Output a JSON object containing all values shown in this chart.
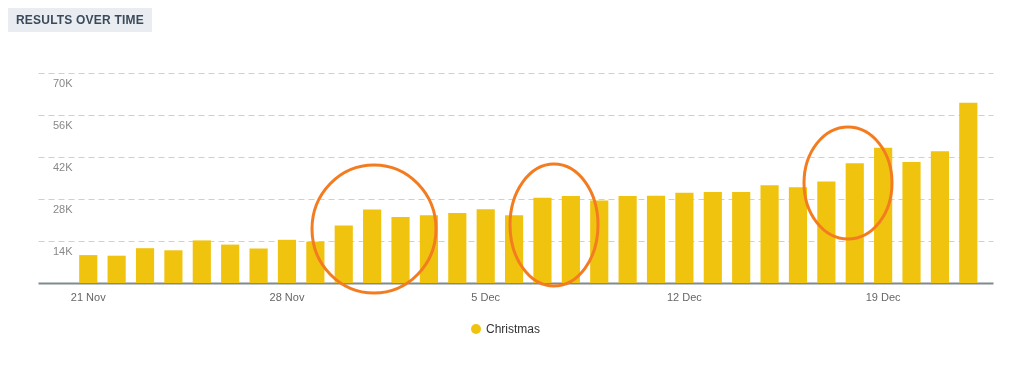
{
  "chart_data": {
    "type": "bar",
    "title": "RESULTS OVER TIME",
    "categories": [
      "21 Nov",
      null,
      null,
      null,
      null,
      null,
      null,
      "28 Nov",
      null,
      null,
      null,
      null,
      null,
      null,
      "5 Dec",
      null,
      null,
      null,
      null,
      null,
      null,
      "12 Dec",
      null,
      null,
      null,
      null,
      null,
      null,
      "19 Dec",
      null,
      null,
      null
    ],
    "series": [
      {
        "name": "Christmas",
        "color": "#f0c30f",
        "values": [
          9300,
          9100,
          11600,
          10900,
          14200,
          12800,
          11500,
          14400,
          13800,
          19200,
          24500,
          22000,
          22600,
          23300,
          24600,
          22600,
          28400,
          29000,
          27500,
          29000,
          29100,
          30100,
          30300,
          30300,
          32600,
          31900,
          33800,
          39900,
          45100,
          40300,
          43900,
          60100
        ]
      }
    ],
    "ylim": [
      0,
      70000
    ],
    "yticks": [
      {
        "value": 14000,
        "label": "14K"
      },
      {
        "value": 28000,
        "label": "28K"
      },
      {
        "value": 42000,
        "label": "42K"
      },
      {
        "value": 56000,
        "label": "56K"
      },
      {
        "value": 70000,
        "label": "70K"
      }
    ],
    "grid": "y",
    "legend": "bottom"
  }
}
